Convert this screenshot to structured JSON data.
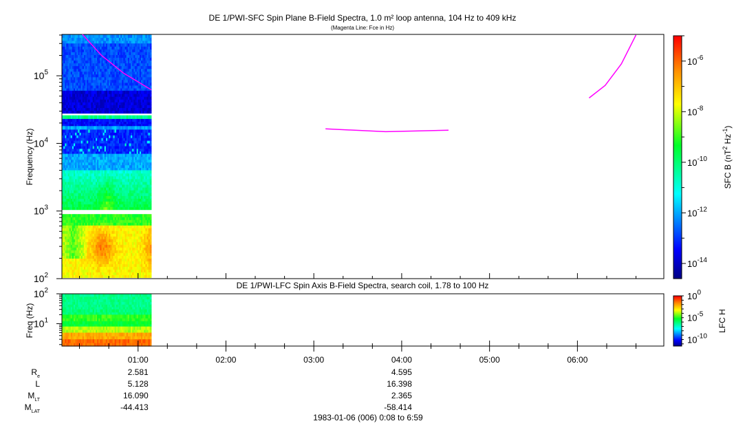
{
  "chart_data": [
    {
      "type": "heatmap",
      "title": "DE 1/PWI-SFC  Spin Plane B-Field Spectra, 1.0 m² loop antenna, 104 Hz to 409 kHz",
      "subtitle": "(Magenta Line: Fce in Hz)",
      "ylabel": "Frequency (Hz)",
      "yscale": "log",
      "ylim": [
        100,
        409000
      ],
      "yticks": [
        {
          "v": 100,
          "e": "2"
        },
        {
          "v": 1000,
          "e": "3"
        },
        {
          "v": 10000,
          "e": "4"
        },
        {
          "v": 100000,
          "e": "5"
        }
      ],
      "xlim": [
        "00:08",
        "06:59"
      ],
      "data_time_range": [
        "00:08",
        "01:09"
      ],
      "colorbar": {
        "label": "SFC B (nT",
        "label_sup1": "2",
        "label_mid": " Hz",
        "label_sup2": "-1",
        "label_end": ")",
        "log10_range": [
          -14.6,
          -5.0
        ],
        "ticks": [
          "-6",
          "-8",
          "-10",
          "-12",
          "-14"
        ]
      },
      "bands_log10": [
        {
          "f": [
            300000,
            409000
          ],
          "value": -12.2
        },
        {
          "f": [
            60000,
            300000
          ],
          "value": -12.8
        },
        {
          "f": [
            28000,
            60000
          ],
          "value": -13.8
        },
        {
          "f": [
            23000,
            26000
          ],
          "value": -10.2
        },
        {
          "f": [
            18000,
            23000
          ],
          "value": -13.4
        },
        {
          "f": [
            16000,
            18000
          ],
          "value": -12.0
        },
        {
          "f": [
            7000,
            16000
          ],
          "value": -13.1
        },
        {
          "f": [
            4000,
            7000
          ],
          "value": -12.0
        },
        {
          "f": [
            1050,
            4000
          ],
          "value": -10.9
        },
        {
          "f": [
            104,
            900
          ],
          "value": -7.6
        }
      ],
      "fce_line_hz": [
        [
          {
            "t": "00:22",
            "f": 409000
          },
          {
            "t": "00:35",
            "f": 200000
          },
          {
            "t": "00:50",
            "f": 110000
          },
          {
            "t": "01:09",
            "f": 62000
          }
        ],
        [
          {
            "t": "03:08",
            "f": 16400
          },
          {
            "t": "03:49",
            "f": 14900
          },
          {
            "t": "04:32",
            "f": 15700
          }
        ],
        [
          {
            "t": "06:08",
            "f": 47000
          },
          {
            "t": "06:19",
            "f": 72000
          },
          {
            "t": "06:30",
            "f": 150000
          },
          {
            "t": "06:40",
            "f": 400000
          }
        ]
      ],
      "line_color": "#ff00ff"
    },
    {
      "type": "heatmap",
      "title": "DE 1/PWI-LFC  Spin Axis B-Field Spectra, search coil, 1.78 to 100 Hz",
      "ylabel": "Freq (Hz)",
      "yscale": "log",
      "ylim": [
        1.78,
        100
      ],
      "yticks": [
        {
          "v": 10,
          "e": "1"
        },
        {
          "v": 100,
          "e": "2"
        }
      ],
      "xlim": [
        "00:08",
        "06:59"
      ],
      "data_time_range": [
        "00:08",
        "01:09"
      ],
      "colorbar": {
        "label": "LFC H",
        "log10_range": [
          -11.5,
          0
        ],
        "ticks": [
          "0",
          "-5",
          "-10"
        ]
      },
      "bands_log10": [
        {
          "f": [
            30,
            100
          ],
          "value": -6.2
        },
        {
          "f": [
            20,
            30
          ],
          "value": -6.0
        },
        {
          "f": [
            12,
            20
          ],
          "value": -4.8
        },
        {
          "f": [
            8,
            12
          ],
          "value": -5.3
        },
        {
          "f": [
            5,
            8
          ],
          "value": -3.8
        },
        {
          "f": [
            3,
            5
          ],
          "value": -2.0
        },
        {
          "f": [
            1.78,
            3
          ],
          "value": -1.2
        }
      ]
    }
  ],
  "x_axis": {
    "ticks": [
      "01:00",
      "02:00",
      "03:00",
      "04:00",
      "05:00",
      "06:00"
    ]
  },
  "ephemeris": {
    "rows": [
      {
        "label": "R",
        "sub": "e",
        "values": [
          "2.581",
          "4.595"
        ]
      },
      {
        "label": "L",
        "sub": "",
        "values": [
          "5.128",
          "16.398"
        ]
      },
      {
        "label": "M",
        "sub": "LT",
        "values": [
          "16.090",
          "2.365"
        ]
      },
      {
        "label": "M",
        "sub": "LAT",
        "values": [
          "-44.413",
          "-58.414"
        ]
      }
    ],
    "value_times": [
      "01:00",
      "04:00"
    ]
  },
  "footer": "1983-01-06 (006) 0:08 to 6:59"
}
